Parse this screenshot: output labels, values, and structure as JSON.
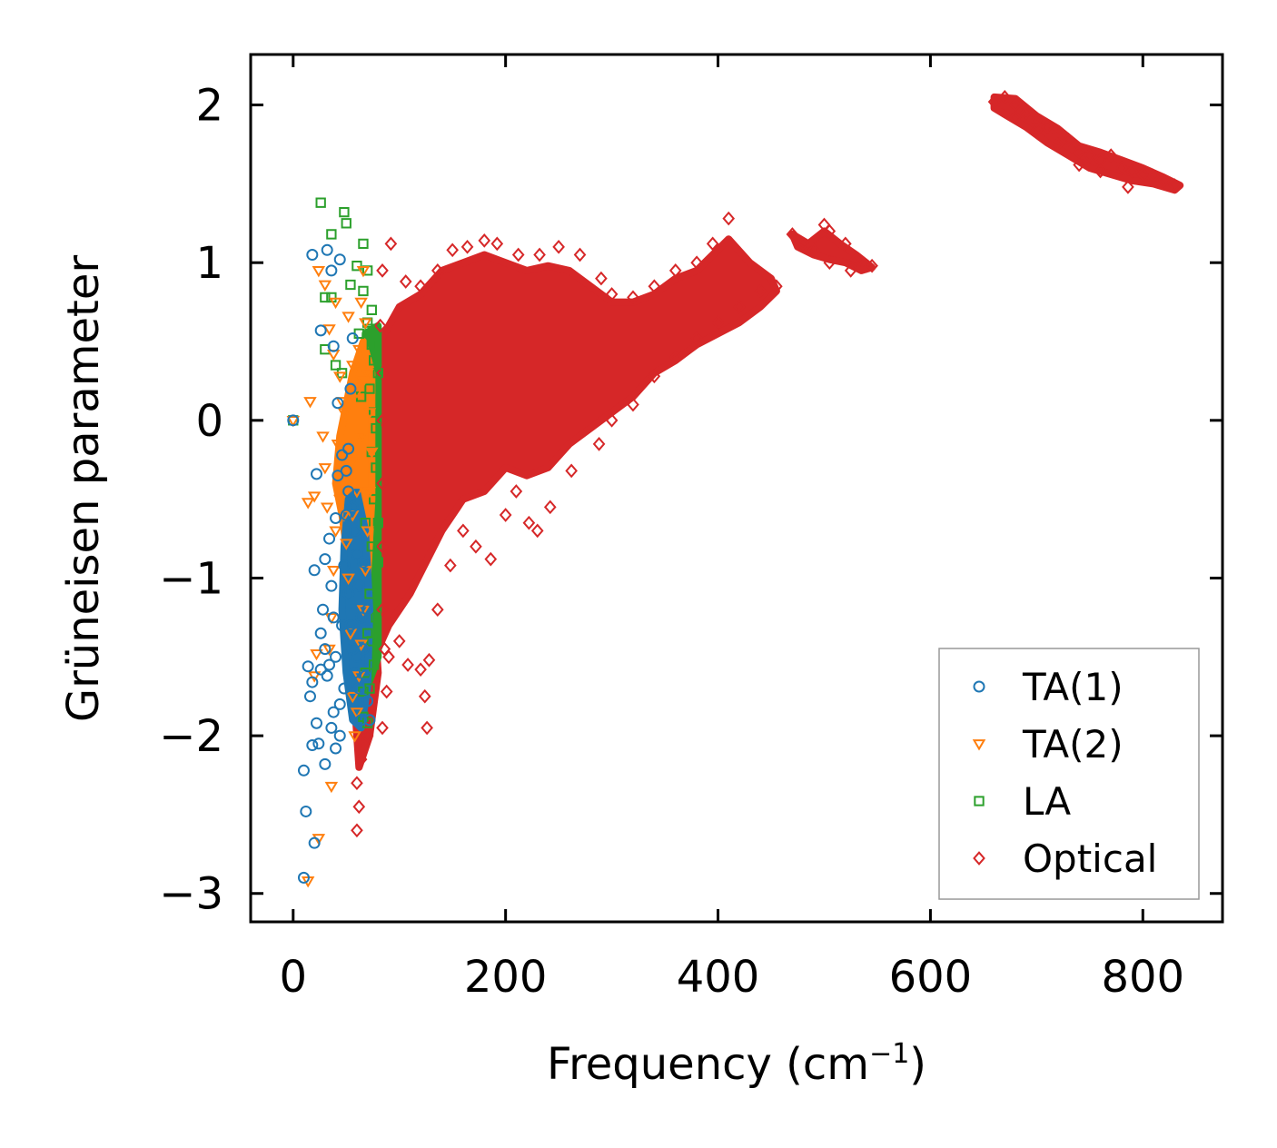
{
  "chart_data": {
    "type": "scatter",
    "title": "",
    "xlabel": "Frequency (cm",
    "xlabel_sup": "−1",
    "xlabel_tail": ")",
    "ylabel": "Grüneisen parameter",
    "xlim": [
      -40,
      875
    ],
    "ylim": [
      -3.18,
      2.32
    ],
    "xticks": [
      0,
      200,
      400,
      600,
      800
    ],
    "xtick_labels": [
      "0",
      "200",
      "400",
      "600",
      "800"
    ],
    "yticks": [
      -3,
      -2,
      -1,
      0,
      1,
      2
    ],
    "ytick_labels": [
      "−3",
      "−2",
      "−1",
      "0",
      "1",
      "2"
    ],
    "grid": false,
    "legend_position": "lower-right",
    "series": [
      {
        "name": "TA(1)",
        "marker": "circle",
        "color": "#1f77b4",
        "points": [
          [
            0,
            0
          ],
          [
            10,
            -2.9
          ],
          [
            12,
            -2.48
          ],
          [
            10,
            -2.22
          ],
          [
            20,
            -2.68
          ],
          [
            18,
            -2.06
          ],
          [
            22,
            -1.92
          ],
          [
            14,
            -1.56
          ],
          [
            16,
            -1.75
          ],
          [
            18,
            -1.66
          ],
          [
            20,
            -0.95
          ],
          [
            22,
            -0.34
          ],
          [
            18,
            1.05
          ],
          [
            26,
            0.57
          ],
          [
            32,
            1.08
          ],
          [
            38,
            0.47
          ],
          [
            42,
            0.11
          ],
          [
            30,
            -0.88
          ],
          [
            28,
            -1.2
          ],
          [
            34,
            -1.55
          ],
          [
            36,
            -1.95
          ],
          [
            40,
            -2.08
          ],
          [
            44,
            -2.0
          ],
          [
            46,
            -1.3
          ],
          [
            48,
            -0.92
          ],
          [
            50,
            -0.6
          ],
          [
            52,
            -0.18
          ],
          [
            54,
            0.2
          ],
          [
            56,
            0.52
          ],
          [
            44,
            1.02
          ],
          [
            36,
            0.95
          ],
          [
            26,
            -1.58
          ],
          [
            24,
            -2.05
          ],
          [
            30,
            -2.18
          ],
          [
            46,
            -0.22
          ],
          [
            50,
            -0.32
          ],
          [
            56,
            -0.55
          ],
          [
            58,
            -0.7
          ],
          [
            60,
            -0.85
          ],
          [
            62,
            -1.05
          ],
          [
            64,
            -1.25
          ],
          [
            66,
            -1.45
          ],
          [
            68,
            -1.62
          ],
          [
            70,
            -1.78
          ],
          [
            72,
            -1.9
          ],
          [
            60,
            -1.5
          ],
          [
            62,
            -1.7
          ],
          [
            64,
            -1.9
          ],
          [
            52,
            -1.1
          ],
          [
            54,
            -1.3
          ],
          [
            56,
            -1.45
          ],
          [
            58,
            -1.6
          ],
          [
            48,
            -1.7
          ],
          [
            44,
            -1.8
          ],
          [
            40,
            -1.5
          ],
          [
            38,
            -1.25
          ],
          [
            36,
            -1.05
          ],
          [
            34,
            -0.75
          ],
          [
            40,
            -0.62
          ],
          [
            42,
            -0.35
          ],
          [
            30,
            -1.45
          ],
          [
            26,
            -1.35
          ],
          [
            32,
            -1.62
          ],
          [
            38,
            -1.85
          ],
          [
            52,
            -0.45
          ],
          [
            66,
            -0.9
          ],
          [
            70,
            -1.2
          ]
        ]
      },
      {
        "name": "TA(2)",
        "marker": "triangle-down",
        "color": "#ff7f0e",
        "points": [
          [
            0,
            0
          ],
          [
            14,
            -2.92
          ],
          [
            24,
            -2.65
          ],
          [
            36,
            -2.32
          ],
          [
            20,
            -1.62
          ],
          [
            22,
            -1.48
          ],
          [
            14,
            -0.52
          ],
          [
            20,
            -0.48
          ],
          [
            16,
            0.12
          ],
          [
            24,
            0.95
          ],
          [
            30,
            0.86
          ],
          [
            34,
            0.58
          ],
          [
            38,
            0.42
          ],
          [
            44,
            0.28
          ],
          [
            48,
            0.05
          ],
          [
            50,
            -0.15
          ],
          [
            52,
            0.66
          ],
          [
            40,
            0.75
          ],
          [
            46,
            0.12
          ],
          [
            54,
            -0.38
          ],
          [
            56,
            -0.6
          ],
          [
            58,
            -0.25
          ],
          [
            60,
            0.18
          ],
          [
            62,
            0.45
          ],
          [
            64,
            0.75
          ],
          [
            66,
            0.95
          ],
          [
            68,
            0.62
          ],
          [
            70,
            0.3
          ],
          [
            72,
            0.05
          ],
          [
            74,
            -0.2
          ],
          [
            72,
            -0.45
          ],
          [
            70,
            -0.7
          ],
          [
            68,
            -0.95
          ],
          [
            66,
            -1.2
          ],
          [
            64,
            -1.42
          ],
          [
            62,
            -1.62
          ],
          [
            60,
            -1.85
          ],
          [
            58,
            -2.0
          ],
          [
            56,
            -1.75
          ],
          [
            54,
            -1.35
          ],
          [
            52,
            -1.0
          ],
          [
            50,
            -0.78
          ],
          [
            48,
            -0.6
          ],
          [
            44,
            -0.5
          ],
          [
            40,
            -0.7
          ],
          [
            38,
            -0.95
          ],
          [
            36,
            -1.25
          ],
          [
            34,
            -1.45
          ],
          [
            30,
            -0.3
          ],
          [
            32,
            -0.55
          ],
          [
            28,
            -0.1
          ],
          [
            42,
            -0.15
          ],
          [
            56,
            0.35
          ],
          [
            60,
            -0.45
          ],
          [
            64,
            -0.1
          ],
          [
            66,
            0.25
          ]
        ]
      },
      {
        "name": "LA",
        "marker": "square",
        "color": "#2ca02c",
        "points": [
          [
            0,
            0
          ],
          [
            26,
            1.38
          ],
          [
            36,
            1.18
          ],
          [
            48,
            1.32
          ],
          [
            50,
            1.25
          ],
          [
            66,
            1.12
          ],
          [
            60,
            0.98
          ],
          [
            70,
            0.95
          ],
          [
            54,
            0.86
          ],
          [
            30,
            0.78
          ],
          [
            36,
            0.78
          ],
          [
            66,
            0.82
          ],
          [
            70,
            0.62
          ],
          [
            74,
            0.48
          ],
          [
            30,
            0.45
          ],
          [
            40,
            0.35
          ],
          [
            46,
            0.3
          ],
          [
            72,
            0.2
          ],
          [
            76,
            0.05
          ],
          [
            74,
            -0.2
          ],
          [
            76,
            -0.5
          ],
          [
            74,
            -0.8
          ],
          [
            72,
            -1.1
          ],
          [
            74,
            -1.4
          ],
          [
            72,
            -1.7
          ],
          [
            70,
            -1.92
          ],
          [
            66,
            -1.88
          ],
          [
            78,
            -0.3
          ],
          [
            80,
            0.3
          ],
          [
            80,
            -0.9
          ],
          [
            78,
            -1.25
          ],
          [
            76,
            -1.55
          ],
          [
            70,
            -1.35
          ],
          [
            68,
            -0.65
          ],
          [
            64,
            0.15
          ],
          [
            72,
            0.58
          ],
          [
            76,
            0.38
          ],
          [
            78,
            -0.05
          ],
          [
            80,
            -0.65
          ],
          [
            68,
            -1.6
          ],
          [
            66,
            -1.72
          ],
          [
            74,
            0.7
          ],
          [
            62,
            0.55
          ]
        ]
      },
      {
        "name": "Optical",
        "marker": "diamond",
        "color": "#d62728",
        "points": [
          [
            60,
            -2.6
          ],
          [
            62,
            -2.45
          ],
          [
            60,
            -2.3
          ],
          [
            64,
            -2.15
          ],
          [
            70,
            -2.0
          ],
          [
            84,
            -1.95
          ],
          [
            88,
            -1.72
          ],
          [
            90,
            -1.5
          ],
          [
            100,
            -1.4
          ],
          [
            108,
            -1.55
          ],
          [
            120,
            -1.58
          ],
          [
            128,
            -1.52
          ],
          [
            124,
            -1.75
          ],
          [
            126,
            -1.95
          ],
          [
            136,
            -1.2
          ],
          [
            148,
            -0.92
          ],
          [
            160,
            -0.7
          ],
          [
            172,
            -0.8
          ],
          [
            186,
            -0.88
          ],
          [
            200,
            -0.6
          ],
          [
            210,
            -0.45
          ],
          [
            222,
            -0.65
          ],
          [
            230,
            -0.7
          ],
          [
            242,
            -0.55
          ],
          [
            262,
            -0.32
          ],
          [
            288,
            -0.15
          ],
          [
            300,
            0.0
          ],
          [
            320,
            0.1
          ],
          [
            340,
            0.28
          ],
          [
            360,
            0.4
          ],
          [
            380,
            0.52
          ],
          [
            400,
            0.62
          ],
          [
            420,
            0.72
          ],
          [
            440,
            0.82
          ],
          [
            455,
            0.85
          ],
          [
            410,
            1.28
          ],
          [
            395,
            1.12
          ],
          [
            380,
            1.0
          ],
          [
            360,
            0.95
          ],
          [
            340,
            0.85
          ],
          [
            320,
            0.78
          ],
          [
            300,
            0.8
          ],
          [
            290,
            0.9
          ],
          [
            270,
            1.05
          ],
          [
            250,
            1.1
          ],
          [
            232,
            1.05
          ],
          [
            212,
            1.05
          ],
          [
            192,
            1.12
          ],
          [
            180,
            1.14
          ],
          [
            164,
            1.1
          ],
          [
            150,
            1.08
          ],
          [
            136,
            0.95
          ],
          [
            120,
            0.85
          ],
          [
            106,
            0.88
          ],
          [
            92,
            1.12
          ],
          [
            84,
            0.95
          ],
          [
            82,
            0.6
          ],
          [
            84,
            0.3
          ],
          [
            84,
            0.0
          ],
          [
            84,
            -0.4
          ],
          [
            84,
            -0.8
          ],
          [
            84,
            -1.2
          ],
          [
            86,
            -1.45
          ],
          [
            470,
            1.18
          ],
          [
            480,
            1.12
          ],
          [
            490,
            1.08
          ],
          [
            500,
            1.24
          ],
          [
            505,
            1.2
          ],
          [
            520,
            1.12
          ],
          [
            530,
            1.02
          ],
          [
            540,
            0.98
          ],
          [
            545,
            0.98
          ],
          [
            525,
            0.95
          ],
          [
            505,
            1.0
          ],
          [
            660,
            2.02
          ],
          [
            670,
            2.05
          ],
          [
            680,
            2.0
          ],
          [
            690,
            1.95
          ],
          [
            700,
            1.9
          ],
          [
            710,
            1.86
          ],
          [
            720,
            1.82
          ],
          [
            730,
            1.78
          ],
          [
            740,
            1.7
          ],
          [
            750,
            1.68
          ],
          [
            760,
            1.65
          ],
          [
            770,
            1.68
          ],
          [
            780,
            1.6
          ],
          [
            790,
            1.58
          ],
          [
            800,
            1.56
          ],
          [
            810,
            1.55
          ],
          [
            820,
            1.52
          ],
          [
            830,
            1.49
          ],
          [
            740,
            1.62
          ],
          [
            760,
            1.58
          ],
          [
            786,
            1.48
          ],
          [
            700,
            1.84
          ],
          [
            680,
            1.92
          ],
          [
            720,
            1.75
          ]
        ]
      }
    ]
  }
}
